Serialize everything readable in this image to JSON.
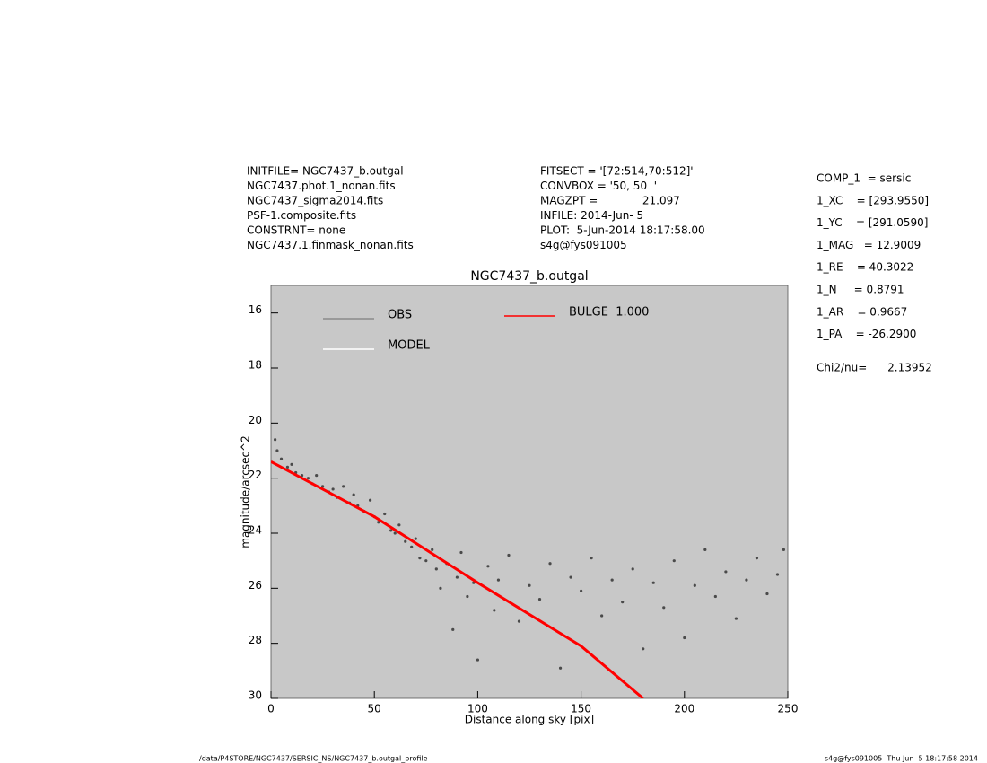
{
  "header": {
    "left": [
      "INITFILE= NGC7437_b.outgal",
      "NGC7437.phot.1_nonan.fits",
      "NGC7437_sigma2014.fits",
      "PSF-1.composite.fits",
      "CONSTRNT= none",
      "NGC7437.1.finmask_nonan.fits"
    ],
    "middle": [
      "FITSECT = '[72:514,70:512]'",
      "CONVBOX = '50, 50  '",
      "MAGZPT =             21.097",
      "INFILE: 2014-Jun- 5",
      "PLOT:  5-Jun-2014 18:17:58.00",
      "s4g@fys091005"
    ],
    "right": [
      "COMP_1  = sersic",
      "1_XC    = [293.9550]",
      "1_YC    = [291.0590]",
      "1_MAG   = 12.9009",
      "1_RE    = 40.3022",
      "1_N     = 0.8791",
      "1_AR    = 0.9667",
      "1_PA    = -26.2900"
    ],
    "chi": "Chi2/nu=      2.13952"
  },
  "footer": {
    "left": "/data/P4STORE/NGC7437/SERSIC_NS/NGC7437_b.outgal_profile",
    "right": "s4g@fys091005  Thu Jun  5 18:17:58 2014"
  },
  "chart_data": {
    "type": "scatter",
    "title": "NGC7437_b.outgal",
    "x_label": "Distance along sky [pix]",
    "y_label": "magnitude/arcsec^2",
    "xlim": [
      0,
      250
    ],
    "xticks": [
      0,
      50,
      100,
      150,
      200,
      250
    ],
    "ylim": [
      30,
      15
    ],
    "yticks": [
      16,
      18,
      20,
      22,
      24,
      26,
      28,
      30
    ],
    "background": "#c8c8c8",
    "series": [
      {
        "name": "OBS",
        "color": "#4a4a4a",
        "style": "points",
        "x": [
          2,
          3,
          5,
          8,
          10,
          12,
          15,
          18,
          20,
          22,
          25,
          28,
          30,
          32,
          35,
          38,
          40,
          42,
          45,
          48,
          50,
          52,
          55,
          58,
          60,
          62,
          65,
          68,
          70,
          72,
          75,
          78,
          80,
          82,
          85,
          88,
          90,
          92,
          95,
          98,
          100,
          105,
          108,
          110,
          115,
          120,
          125,
          130,
          135,
          140,
          145,
          150,
          155,
          160,
          165,
          170,
          175,
          180,
          185,
          190,
          195,
          200,
          205,
          210,
          215,
          220,
          225,
          230,
          235,
          240,
          245,
          248
        ],
        "values": [
          20.6,
          21.0,
          21.3,
          21.6,
          21.5,
          21.8,
          21.9,
          22.0,
          22.2,
          21.9,
          22.3,
          22.5,
          22.4,
          22.7,
          22.3,
          22.9,
          22.6,
          23.0,
          23.2,
          22.8,
          23.4,
          23.6,
          23.3,
          23.9,
          24.0,
          23.7,
          24.3,
          24.5,
          24.2,
          24.9,
          25.0,
          24.6,
          25.3,
          26.0,
          25.1,
          27.5,
          25.6,
          24.7,
          26.3,
          25.8,
          28.6,
          25.2,
          26.8,
          25.7,
          24.8,
          27.2,
          25.9,
          26.4,
          25.1,
          28.9,
          25.6,
          26.1,
          24.9,
          27.0,
          25.7,
          26.5,
          25.3,
          28.2,
          25.8,
          26.7,
          25.0,
          27.8,
          25.9,
          24.6,
          26.3,
          25.4,
          27.1,
          25.7,
          24.9,
          26.2,
          25.5,
          24.6
        ]
      },
      {
        "name": "MODEL",
        "color": "#ffffff",
        "style": "line",
        "x": [
          0,
          50,
          100,
          150,
          180
        ],
        "values": [
          21.4,
          23.4,
          25.8,
          28.1,
          30.0
        ]
      },
      {
        "name": "BULGE  1.000",
        "color": "#ff0000",
        "style": "line",
        "x": [
          0,
          50,
          100,
          150,
          180
        ],
        "values": [
          21.4,
          23.4,
          25.8,
          28.1,
          30.0
        ]
      }
    ]
  }
}
